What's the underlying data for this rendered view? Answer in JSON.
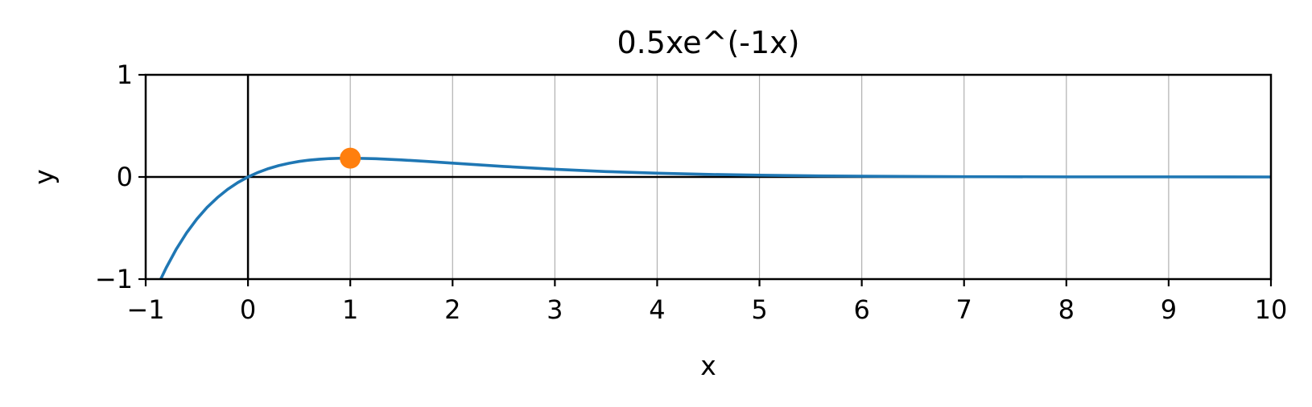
{
  "chart_data": {
    "type": "line",
    "title": "0.5xe^(-1x)",
    "xlabel": "x",
    "ylabel": "y",
    "xlim": [
      -1,
      10
    ],
    "ylim": [
      -1,
      1
    ],
    "xticks": [
      -1,
      0,
      1,
      2,
      3,
      4,
      5,
      6,
      7,
      8,
      9,
      10
    ],
    "xtick_labels": [
      "−1",
      "0",
      "1",
      "2",
      "3",
      "4",
      "5",
      "6",
      "7",
      "8",
      "9",
      "10"
    ],
    "yticks": [
      -1,
      0,
      1
    ],
    "ytick_labels": [
      "−1",
      "0",
      "1"
    ],
    "grid": "vertical",
    "series": [
      {
        "color": "#1f77b4",
        "x": [
          -0.86,
          -0.8,
          -0.7,
          -0.6,
          -0.5,
          -0.4,
          -0.3,
          -0.2,
          -0.1,
          0,
          0.1,
          0.2,
          0.3,
          0.4,
          0.5,
          0.6,
          0.7,
          0.8,
          0.9,
          1,
          1.25,
          1.5,
          1.75,
          2,
          2.5,
          3,
          3.5,
          4,
          4.5,
          5,
          5.5,
          6,
          7,
          8,
          9,
          10
        ],
        "y": [
          -1.015,
          -0.89,
          -0.705,
          -0.547,
          -0.412,
          -0.298,
          -0.203,
          -0.122,
          -0.055,
          0,
          0.045,
          0.082,
          0.111,
          0.134,
          0.152,
          0.165,
          0.174,
          0.18,
          0.183,
          0.184,
          0.179,
          0.167,
          0.152,
          0.135,
          0.103,
          0.075,
          0.053,
          0.037,
          0.025,
          0.017,
          0.011,
          0.007,
          0.003,
          0.001,
          0.001,
          0
        ]
      }
    ],
    "points": [
      {
        "x": 1,
        "y": 0.184,
        "color": "#ff7f0e"
      }
    ],
    "zero_lines": {
      "color": "#000000"
    }
  }
}
